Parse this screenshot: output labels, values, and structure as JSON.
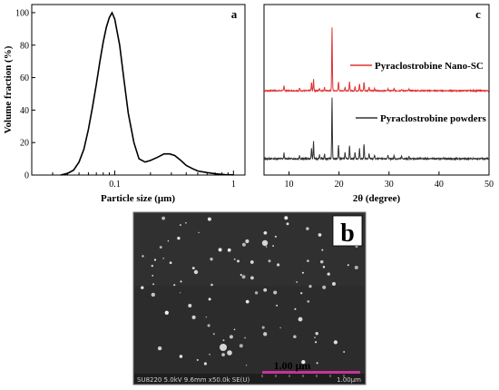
{
  "figure": {
    "panels": [
      "a",
      "c",
      "b"
    ]
  },
  "chart_data": [
    {
      "panel": "a",
      "type": "line",
      "xlabel": "Particle size (μm)",
      "ylabel": "Volume fraction (%)",
      "x_scale": "log",
      "xlim": [
        0.02,
        1.25
      ],
      "ylim": [
        0,
        105
      ],
      "x_ticks": [
        0.1,
        1
      ],
      "x_tick_labels": [
        "0.1",
        "1"
      ],
      "y_ticks": [
        0,
        20,
        40,
        60,
        80,
        100
      ],
      "grid": false,
      "series": [
        {
          "color": "#000000",
          "x": [
            0.035,
            0.04,
            0.045,
            0.05,
            0.055,
            0.06,
            0.065,
            0.07,
            0.075,
            0.08,
            0.085,
            0.09,
            0.095,
            0.1,
            0.11,
            0.12,
            0.13,
            0.145,
            0.16,
            0.18,
            0.2,
            0.23,
            0.26,
            0.29,
            0.32,
            0.36,
            0.4,
            0.45,
            0.5,
            0.6,
            0.7,
            0.85,
            1.0
          ],
          "y": [
            0,
            1,
            3,
            8,
            16,
            28,
            42,
            56,
            70,
            82,
            91,
            97,
            100,
            96,
            80,
            58,
            38,
            20,
            10,
            8,
            9,
            11,
            13,
            13,
            12,
            9,
            6,
            4,
            2.5,
            1.5,
            0.8,
            0.3,
            0.1
          ]
        }
      ]
    },
    {
      "panel": "c",
      "type": "line",
      "xlabel": "2θ (degree)",
      "xlim": [
        5,
        50
      ],
      "x_ticks": [
        10,
        20,
        30,
        40,
        50
      ],
      "y_axis_labels": false,
      "grid": false,
      "legend": "top-right",
      "series": [
        {
          "name": "Pyraclostrobine Nano-SC",
          "color": "#e03030",
          "peaks": [
            [
              9.0,
              8
            ],
            [
              12.1,
              4
            ],
            [
              14.5,
              12
            ],
            [
              14.9,
              18
            ],
            [
              16.1,
              4
            ],
            [
              17.1,
              5
            ],
            [
              18.6,
              100
            ],
            [
              19.9,
              14
            ],
            [
              21.2,
              6
            ],
            [
              22.1,
              14
            ],
            [
              23.2,
              6
            ],
            [
              24.1,
              11
            ],
            [
              25.0,
              14
            ],
            [
              26.0,
              5
            ],
            [
              27.1,
              4
            ],
            [
              29.8,
              3
            ],
            [
              31.0,
              3
            ],
            [
              32.5,
              2
            ],
            [
              34.0,
              2
            ]
          ]
        },
        {
          "name": "Pyraclostrobine powders",
          "color": "#333333",
          "peaks": [
            [
              9.0,
              9
            ],
            [
              12.1,
              6
            ],
            [
              14.5,
              18
            ],
            [
              14.9,
              28
            ],
            [
              16.1,
              6
            ],
            [
              17.1,
              8
            ],
            [
              18.6,
              100
            ],
            [
              19.9,
              22
            ],
            [
              21.2,
              10
            ],
            [
              22.1,
              22
            ],
            [
              23.2,
              10
            ],
            [
              24.1,
              16
            ],
            [
              25.0,
              24
            ],
            [
              26.0,
              8
            ],
            [
              27.1,
              6
            ],
            [
              29.8,
              5
            ],
            [
              31.0,
              5
            ],
            [
              32.5,
              4
            ],
            [
              34.0,
              3
            ]
          ]
        }
      ]
    }
  ],
  "sem": {
    "panel": "b",
    "scale_label": "1.00 μm",
    "info_bar": "SU8220 5.0kV 9.6mm x50.0k SE(U)",
    "info_scale": "1.00μm"
  }
}
